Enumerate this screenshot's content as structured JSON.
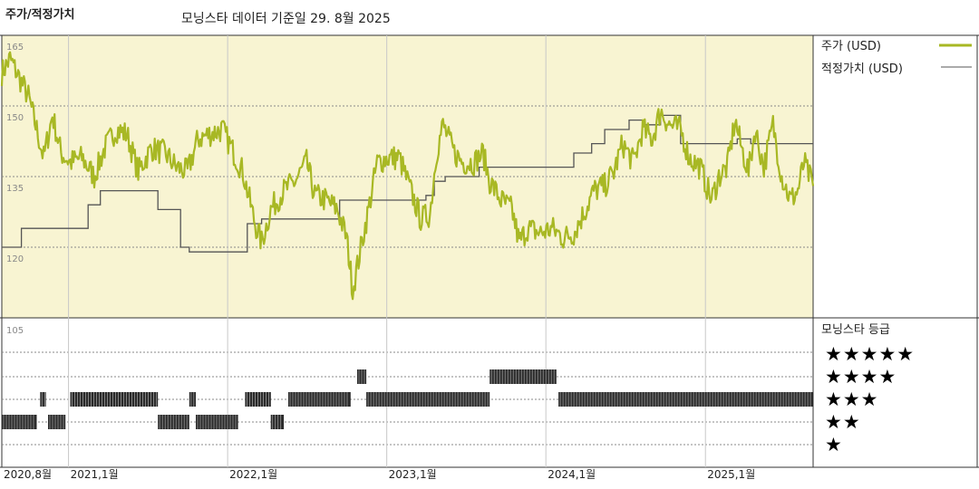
{
  "header": {
    "left_title": "주가/적정가치",
    "center_title": "모닝스타 데이터 기준일 29. 8월 2025"
  },
  "colors": {
    "price": "#a8b824",
    "fair_value": "#555555",
    "plot_bg": "#f8f4d2",
    "grid": "#8a8a8a",
    "bars": "#2a2a2a"
  },
  "chart_data": [
    {
      "type": "line",
      "title": "주가/적정가치",
      "x_axis": {
        "range": [
          "2020-08-01",
          "2025-09-05"
        ],
        "tick_labels": [
          {
            "date": "2020-08-01",
            "label": "2020,8월"
          },
          {
            "date": "2021-01-01",
            "label": "2021,1월"
          },
          {
            "date": "2022-01-01",
            "label": "2022,1월"
          },
          {
            "date": "2023-01-01",
            "label": "2023,1월"
          },
          {
            "date": "2024-01-01",
            "label": "2024,1월"
          },
          {
            "date": "2025-01-01",
            "label": "2025,1월"
          }
        ]
      },
      "y_axis": {
        "range": [
          105,
          165
        ],
        "ticks": [
          165,
          150,
          135,
          120,
          105
        ]
      },
      "grid": true,
      "legend": {
        "placement": "right"
      },
      "series": [
        {
          "name": "주가 (USD)",
          "points": [
            [
              "2020-08-01",
              157
            ],
            [
              "2020-08-20",
              160
            ],
            [
              "2020-09-10",
              156
            ],
            [
              "2020-10-01",
              152
            ],
            [
              "2020-10-20",
              145
            ],
            [
              "2020-11-05",
              139
            ],
            [
              "2020-11-25",
              148
            ],
            [
              "2020-12-15",
              140
            ],
            [
              "2021-01-05",
              138
            ],
            [
              "2021-02-01",
              139
            ],
            [
              "2021-03-01",
              135
            ],
            [
              "2021-03-25",
              141
            ],
            [
              "2021-04-20",
              145
            ],
            [
              "2021-05-15",
              144
            ],
            [
              "2021-06-10",
              136
            ],
            [
              "2021-07-10",
              141
            ],
            [
              "2021-08-10",
              140
            ],
            [
              "2021-09-05",
              137
            ],
            [
              "2021-10-01",
              136
            ],
            [
              "2021-10-25",
              143
            ],
            [
              "2021-11-20",
              144
            ],
            [
              "2021-12-20",
              145
            ],
            [
              "2022-01-10",
              141
            ],
            [
              "2022-02-05",
              136
            ],
            [
              "2022-03-05",
              125
            ],
            [
              "2022-03-20",
              121
            ],
            [
              "2022-04-10",
              128
            ],
            [
              "2022-05-10",
              132
            ],
            [
              "2022-06-05",
              134
            ],
            [
              "2022-07-01",
              138
            ],
            [
              "2022-07-20",
              131
            ],
            [
              "2022-08-15",
              130
            ],
            [
              "2022-09-10",
              128
            ],
            [
              "2022-10-01",
              122
            ],
            [
              "2022-10-15",
              111
            ],
            [
              "2022-11-05",
              121
            ],
            [
              "2022-11-20",
              128
            ],
            [
              "2022-12-10",
              138
            ],
            [
              "2023-01-05",
              139
            ],
            [
              "2023-01-30",
              139
            ],
            [
              "2023-02-25",
              132
            ],
            [
              "2023-03-20",
              126
            ],
            [
              "2023-04-10",
              127
            ],
            [
              "2023-04-25",
              140
            ],
            [
              "2023-05-10",
              146
            ],
            [
              "2023-06-05",
              140
            ],
            [
              "2023-06-25",
              138
            ],
            [
              "2023-07-20",
              138
            ],
            [
              "2023-08-10",
              140
            ],
            [
              "2023-08-25",
              134
            ],
            [
              "2023-09-20",
              130
            ],
            [
              "2023-10-15",
              128
            ],
            [
              "2023-11-01",
              121
            ],
            [
              "2023-11-20",
              124
            ],
            [
              "2023-12-20",
              123
            ],
            [
              "2024-01-15",
              124
            ],
            [
              "2024-02-10",
              122
            ],
            [
              "2024-03-05",
              123
            ],
            [
              "2024-04-01",
              128
            ],
            [
              "2024-04-20",
              132
            ],
            [
              "2024-05-15",
              133
            ],
            [
              "2024-06-05",
              136
            ],
            [
              "2024-06-25",
              142
            ],
            [
              "2024-07-20",
              138
            ],
            [
              "2024-08-10",
              145
            ],
            [
              "2024-09-01",
              143
            ],
            [
              "2024-09-20",
              149
            ],
            [
              "2024-10-10",
              146
            ],
            [
              "2024-11-05",
              145
            ],
            [
              "2024-11-25",
              139
            ],
            [
              "2024-12-20",
              137
            ],
            [
              "2025-01-15",
              130
            ],
            [
              "2025-02-01",
              135
            ],
            [
              "2025-02-20",
              137
            ],
            [
              "2025-03-10",
              147
            ],
            [
              "2025-03-25",
              141
            ],
            [
              "2025-04-10",
              136
            ],
            [
              "2025-04-25",
              145
            ],
            [
              "2025-05-15",
              137
            ],
            [
              "2025-06-05",
              146
            ],
            [
              "2025-06-25",
              135
            ],
            [
              "2025-07-15",
              130
            ],
            [
              "2025-08-01",
              132
            ],
            [
              "2025-08-15",
              138
            ],
            [
              "2025-09-05",
              133
            ]
          ]
        },
        {
          "name": "적정가치 (USD)",
          "steps": [
            [
              "2020-08-01",
              120
            ],
            [
              "2020-09-15",
              124
            ],
            [
              "2021-02-15",
              129
            ],
            [
              "2021-03-15",
              132
            ],
            [
              "2021-07-25",
              128
            ],
            [
              "2021-09-15",
              120
            ],
            [
              "2021-10-05",
              119
            ],
            [
              "2022-02-15",
              125
            ],
            [
              "2022-03-20",
              126
            ],
            [
              "2022-09-15",
              130
            ],
            [
              "2022-11-10",
              130
            ],
            [
              "2023-04-01",
              131
            ],
            [
              "2023-04-20",
              134
            ],
            [
              "2023-05-15",
              135
            ],
            [
              "2023-08-01",
              137
            ],
            [
              "2023-09-15",
              137
            ],
            [
              "2024-01-10",
              137
            ],
            [
              "2024-03-05",
              140
            ],
            [
              "2024-04-15",
              142
            ],
            [
              "2024-05-15",
              145
            ],
            [
              "2024-07-10",
              147
            ],
            [
              "2024-08-10",
              146
            ],
            [
              "2024-09-20",
              148
            ],
            [
              "2024-11-05",
              142
            ],
            [
              "2025-01-05",
              142
            ],
            [
              "2025-03-15",
              143
            ],
            [
              "2025-04-15",
              142
            ],
            [
              "2025-09-05",
              142
            ]
          ]
        }
      ]
    },
    {
      "type": "bar",
      "title": "모닝스타 등급",
      "levels": [
        "★★★★★",
        "★★★★",
        "★★★",
        "★★",
        "★"
      ],
      "y_tick": "105",
      "ratings": [
        {
          "from": "2020-08-01",
          "to": "2020-10-20",
          "stars": 2
        },
        {
          "from": "2020-10-28",
          "to": "2020-11-10",
          "stars": 3
        },
        {
          "from": "2020-11-15",
          "to": "2020-12-25",
          "stars": 2
        },
        {
          "from": "2021-01-05",
          "to": "2021-07-25",
          "stars": 3
        },
        {
          "from": "2021-07-25",
          "to": "2021-10-05",
          "stars": 2
        },
        {
          "from": "2021-10-05",
          "to": "2021-10-20",
          "stars": 3
        },
        {
          "from": "2021-10-20",
          "to": "2022-01-25",
          "stars": 2
        },
        {
          "from": "2022-02-10",
          "to": "2022-04-10",
          "stars": 3
        },
        {
          "from": "2022-04-10",
          "to": "2022-05-10",
          "stars": 2
        },
        {
          "from": "2022-05-20",
          "to": "2022-10-10",
          "stars": 3
        },
        {
          "from": "2022-10-25",
          "to": "2022-11-15",
          "stars": 4
        },
        {
          "from": "2022-11-15",
          "to": "2023-08-25",
          "stars": 3
        },
        {
          "from": "2023-08-25",
          "to": "2024-01-25",
          "stars": 4
        },
        {
          "from": "2024-01-30",
          "to": "2025-09-05",
          "stars": 3
        }
      ]
    }
  ],
  "legend": {
    "price_label": "주가 (USD)",
    "fair_value_label": "적정가치 (USD)",
    "rating_title": "모닝스타 등급"
  }
}
